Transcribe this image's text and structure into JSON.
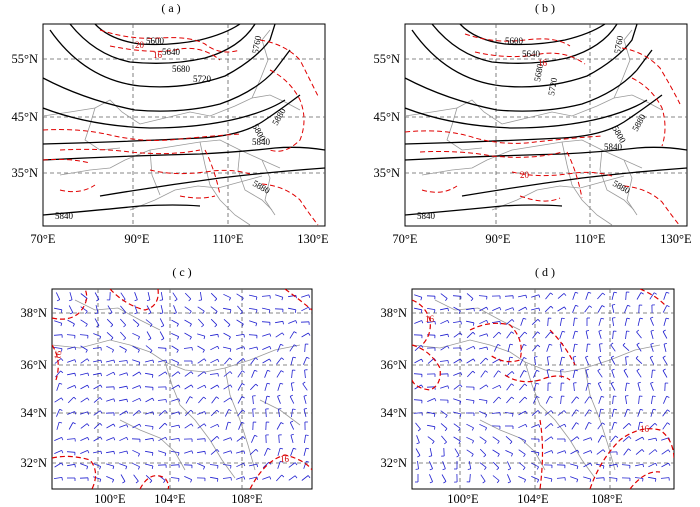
{
  "panels": [
    {
      "id": "a",
      "label": "( a )",
      "lat_ticks": [
        "55°N",
        "45°N",
        "35°N"
      ],
      "lon_ticks": [
        "70°E",
        "90°E",
        "110°E",
        "130°E"
      ],
      "contour_labels": [
        "5600",
        "5640",
        "5680",
        "5720",
        "5760",
        "5800",
        "5840",
        "5880",
        "5840",
        "5880"
      ],
      "red_labels": [
        "20",
        "16"
      ]
    },
    {
      "id": "b",
      "label": "( b )",
      "lat_ticks": [
        "55°N",
        "45°N",
        "35°N"
      ],
      "lon_ticks": [
        "70°E",
        "90°E",
        "110°E",
        "130°E"
      ],
      "contour_labels": [
        "5600",
        "5640",
        "5680",
        "5720",
        "5760",
        "5800",
        "5840",
        "5880",
        "5840",
        "5880"
      ],
      "red_labels": [
        "16",
        "20"
      ]
    },
    {
      "id": "c",
      "label": "( c )",
      "lat_ticks": [
        "38°N",
        "36°N",
        "34°N",
        "32°N"
      ],
      "lon_ticks": [
        "100°E",
        "104°E",
        "108°E"
      ],
      "red_labels": [
        "16",
        "16"
      ]
    },
    {
      "id": "d",
      "label": "( d )",
      "lat_ticks": [
        "38°N",
        "36°N",
        "34°N",
        "32°N"
      ],
      "lon_ticks": [
        "100°E",
        "104°E",
        "108°E"
      ],
      "red_labels": [
        "16",
        "16"
      ]
    }
  ],
  "colors": {
    "contour": "#000000",
    "dashed_isotach": "#e00000",
    "wind_barb": "#1f1fd0",
    "border": "#9a9a9a",
    "grid": "#606060"
  }
}
